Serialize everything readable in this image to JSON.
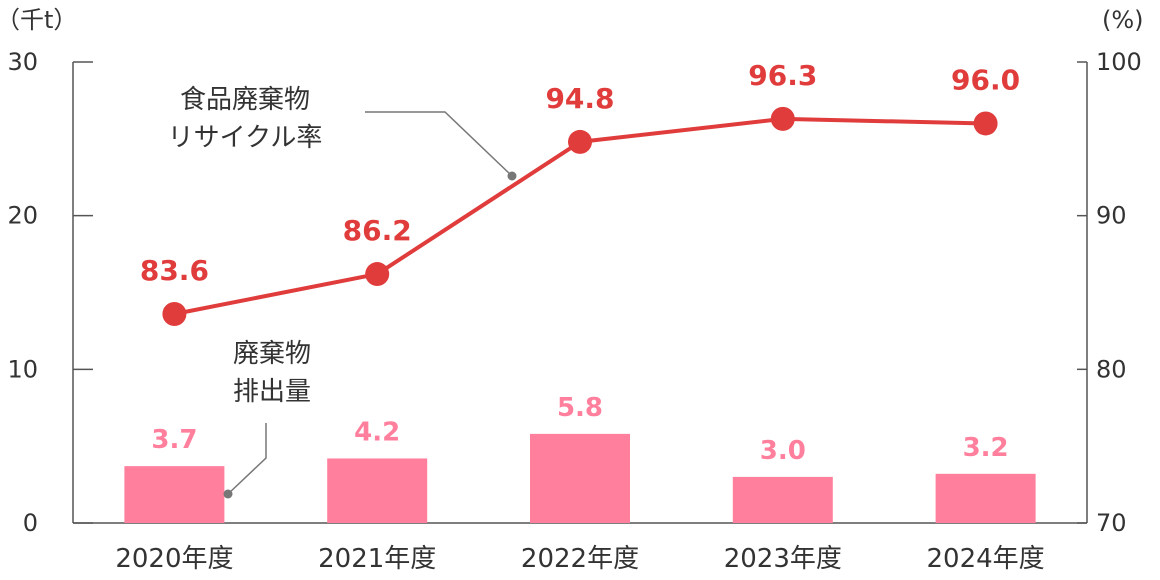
{
  "chart_data": {
    "type": "bar",
    "categories": [
      "2020年度",
      "2021年度",
      "2022年度",
      "2023年度",
      "2024年度"
    ],
    "y_left": {
      "unit": "（千t）",
      "ticks": [
        "0",
        "10",
        "20",
        "30"
      ],
      "range": [
        0,
        30
      ]
    },
    "y_right": {
      "unit": "(%)",
      "ticks": [
        "70",
        "80",
        "90",
        "100"
      ],
      "range": [
        70,
        100
      ]
    },
    "series": [
      {
        "name_lines": [
          "廃棄物",
          "排出量"
        ],
        "kind": "bar",
        "axis": "left",
        "color": "#ff7f9c",
        "values": [
          3.7,
          4.2,
          5.8,
          3.0,
          3.2
        ],
        "labels": [
          "3.7",
          "4.2",
          "5.8",
          "3.0",
          "3.2"
        ]
      },
      {
        "name_lines": [
          "食品廃棄物",
          "リサイクル率"
        ],
        "kind": "line",
        "axis": "right",
        "color": "#e03c3c",
        "values": [
          83.6,
          86.2,
          94.8,
          96.3,
          96.0
        ],
        "labels": [
          "83.6",
          "86.2",
          "94.8",
          "96.3",
          "96.0"
        ]
      }
    ],
    "legend": "inline-callouts",
    "grid": false
  }
}
